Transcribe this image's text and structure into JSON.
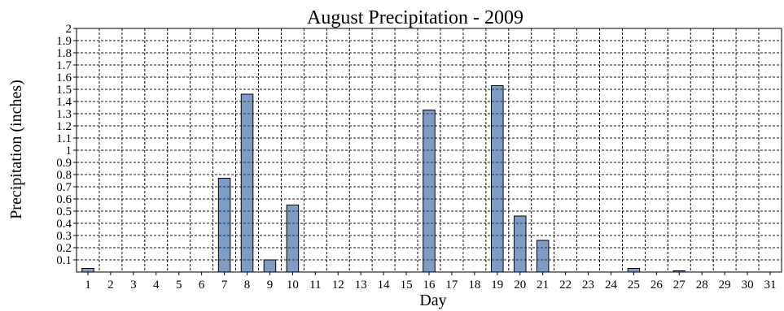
{
  "chart_data": {
    "type": "bar",
    "title": "August Precipitation - 2009",
    "xlabel": "Day",
    "ylabel": "Precipitation (inches)",
    "ylim": [
      0,
      2
    ],
    "y_ticks": [
      "0.1",
      "0.2",
      "0.3",
      "0.4",
      "0.5",
      "0.6",
      "0.7",
      "0.8",
      "0.9",
      "1",
      "1.1",
      "1.2",
      "1.3",
      "1.4",
      "1.5",
      "1.6",
      "1.7",
      "1.8",
      "1.9",
      "2"
    ],
    "categories": [
      "1",
      "2",
      "3",
      "4",
      "5",
      "6",
      "7",
      "8",
      "9",
      "10",
      "11",
      "12",
      "13",
      "14",
      "15",
      "16",
      "17",
      "18",
      "19",
      "20",
      "21",
      "22",
      "23",
      "24",
      "25",
      "26",
      "27",
      "28",
      "29",
      "30",
      "31"
    ],
    "values": [
      0.03,
      0,
      0,
      0,
      0,
      0,
      0.77,
      1.46,
      0.1,
      0.55,
      0,
      0,
      0,
      0,
      0,
      1.33,
      0,
      0,
      1.53,
      0.46,
      0.26,
      0,
      0,
      0,
      0.03,
      0,
      0.01,
      0,
      0,
      0,
      0
    ],
    "grid": true,
    "bar_color": "#7f9cc6"
  }
}
